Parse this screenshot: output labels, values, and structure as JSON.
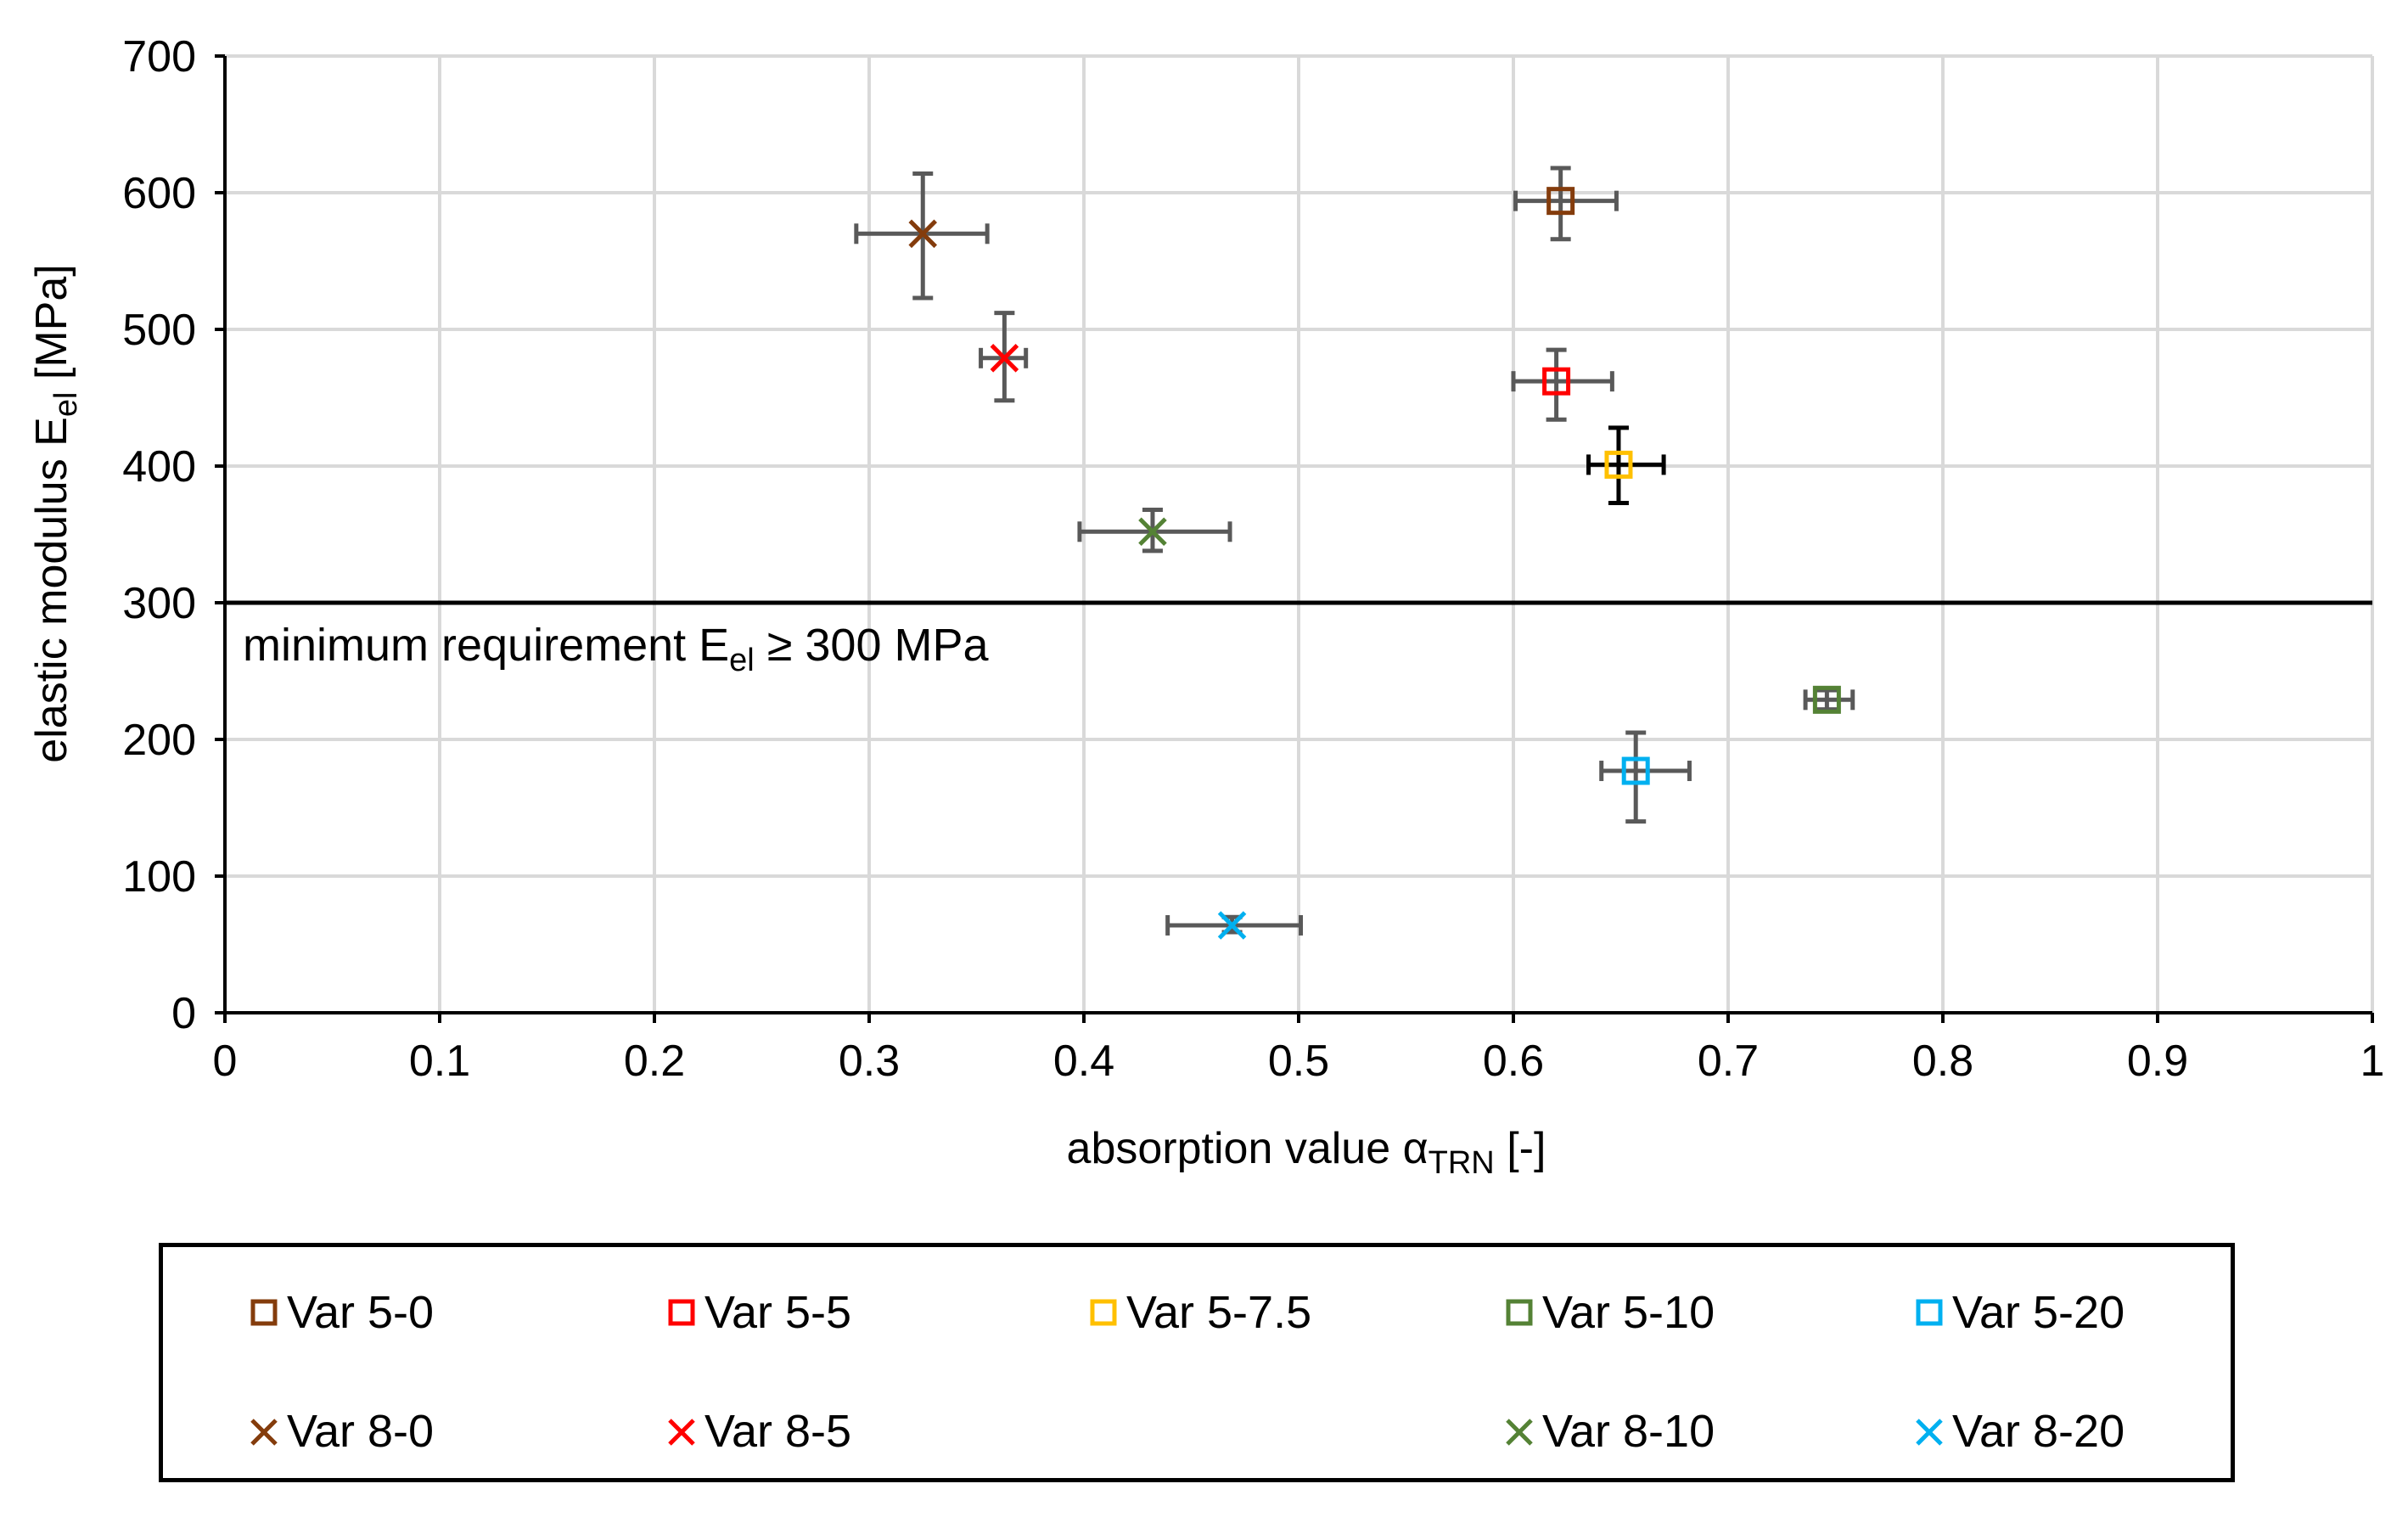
{
  "chart_data": {
    "type": "scatter",
    "xlabel_main": "absorption value α",
    "xlabel_sub": "TRN",
    "xlabel_tail": " [-]",
    "ylabel_main": "elastic modulus E",
    "ylabel_sub": "el",
    "ylabel_tail": " [MPa]",
    "xlim": [
      0,
      1
    ],
    "ylim": [
      0,
      700
    ],
    "x_ticks": [
      0,
      0.1,
      0.2,
      0.3,
      0.4,
      0.5,
      0.6,
      0.7,
      0.8,
      0.9,
      1
    ],
    "y_ticks": [
      0,
      100,
      200,
      300,
      400,
      500,
      600,
      700
    ],
    "x_tick_labels": [
      "0",
      "0.1",
      "0.2",
      "0.3",
      "0.4",
      "0.5",
      "0.6",
      "0.7",
      "0.8",
      "0.9",
      "1"
    ],
    "y_tick_labels": [
      "0",
      "100",
      "200",
      "300",
      "400",
      "500",
      "600",
      "700"
    ],
    "grid": true,
    "reference_line": {
      "y": 300,
      "label_main": "minimum requirement E",
      "label_sub": "el",
      "label_tail": " ≥ 300 MPa"
    },
    "series": [
      {
        "name": "Var 5-0",
        "marker": "square",
        "color": "#843C0C",
        "x": 0.622,
        "y": 594,
        "x_err": [
          0.601,
          0.648
        ],
        "y_err": [
          566,
          618
        ]
      },
      {
        "name": "Var 5-5",
        "marker": "square",
        "color": "#FF0000",
        "x": 0.62,
        "y": 462,
        "x_err": [
          0.6,
          0.646
        ],
        "y_err": [
          434,
          485
        ]
      },
      {
        "name": "Var 5-7.5",
        "marker": "square",
        "color": "#FFC000",
        "x": 0.649,
        "y": 401,
        "x_err": [
          0.635,
          0.67
        ],
        "y_err": [
          373,
          428
        ]
      },
      {
        "name": "Var 5-10",
        "marker": "square",
        "color": "#548235",
        "x": 0.746,
        "y": 229,
        "x_err": [
          0.736,
          0.758
        ],
        "y_err": [
          222,
          236
        ]
      },
      {
        "name": "Var 5-20",
        "marker": "square",
        "color": "#00B0F0",
        "x": 0.657,
        "y": 177,
        "x_err": [
          0.641,
          0.682
        ],
        "y_err": [
          140,
          205
        ]
      },
      {
        "name": "Var 8-0",
        "marker": "x",
        "color": "#843C0C",
        "x": 0.325,
        "y": 570,
        "x_err": [
          0.294,
          0.355
        ],
        "y_err": [
          523,
          614
        ]
      },
      {
        "name": "Var 8-5",
        "marker": "x",
        "color": "#FF0000",
        "x": 0.363,
        "y": 479,
        "x_err": [
          0.352,
          0.373
        ],
        "y_err": [
          448,
          512
        ]
      },
      {
        "name": "Var 8-10",
        "marker": "x",
        "color": "#548235",
        "x": 0.432,
        "y": 352,
        "x_err": [
          0.398,
          0.468
        ],
        "y_err": [
          338,
          368
        ]
      },
      {
        "name": "Var 8-20",
        "marker": "x",
        "color": "#00B0F0",
        "x": 0.469,
        "y": 64,
        "x_err": [
          0.439,
          0.501
        ],
        "y_err": [
          59,
          70
        ]
      }
    ],
    "legend_position": "bottom"
  },
  "colors": {
    "grid": "#D9D9D9",
    "axis": "#000000",
    "error_bar": "#595959",
    "error_bar_light": "#000000"
  }
}
